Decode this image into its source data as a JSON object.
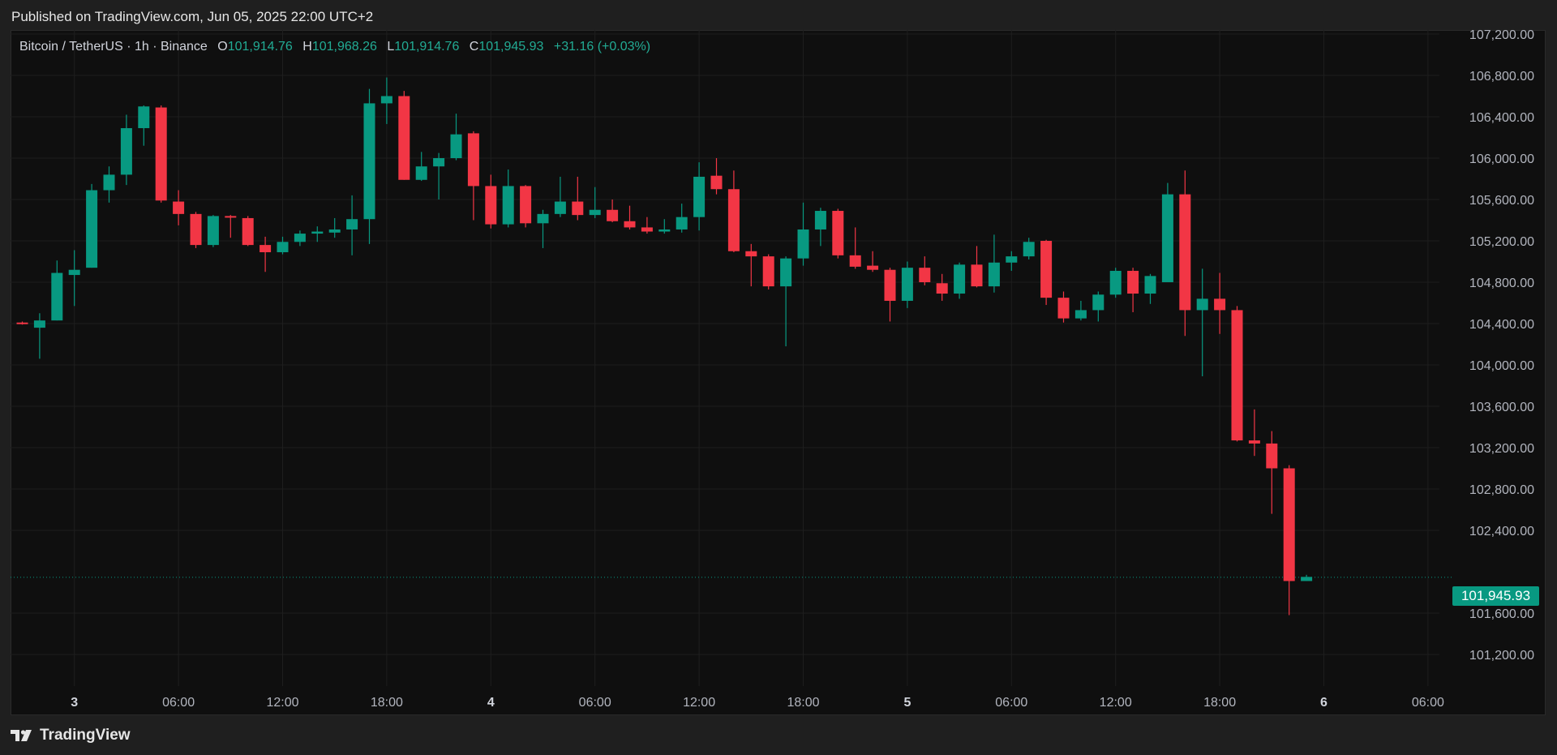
{
  "header": {
    "published": "Published on TradingView.com, Jun 05, 2025 22:00 UTC+2"
  },
  "legend": {
    "symbol": "Bitcoin / TetherUS · 1h · Binance",
    "open_label": "O",
    "open": "101,914.76",
    "high_label": "H",
    "high": "101,968.26",
    "low_label": "L",
    "low": "101,914.76",
    "close_label": "C",
    "close": "101,945.93",
    "change": "+31.16 (+0.03%)"
  },
  "last_price_label": "101,945.93",
  "footer": {
    "brand": "TradingView"
  },
  "colors": {
    "up": "#089981",
    "down": "#f23645",
    "grid": "#1e1e1e",
    "axis_text": "#b2b5be",
    "last_price_line": "#089981"
  },
  "chart_data": {
    "type": "candlestick",
    "symbol": "Bitcoin / TetherUS",
    "interval": "1h",
    "exchange": "Binance",
    "ylim": [
      101000,
      107400
    ],
    "y_ticks": [
      107200,
      106800,
      106400,
      106000,
      105600,
      105200,
      104800,
      104400,
      104000,
      103600,
      103200,
      102800,
      102400,
      101600,
      101200
    ],
    "y_tick_labels": [
      "107,200.00",
      "106,800.00",
      "106,400.00",
      "106,000.00",
      "105,600.00",
      "105,200.00",
      "104,800.00",
      "104,400.00",
      "104,000.00",
      "103,600.00",
      "103,200.00",
      "102,800.00",
      "102,400.00",
      "101,600.00",
      "101,200.00"
    ],
    "x_ticks": [
      {
        "hour_index": 3,
        "label": "3",
        "bold": true
      },
      {
        "hour_index": 9,
        "label": "06:00",
        "bold": false
      },
      {
        "hour_index": 15,
        "label": "12:00",
        "bold": false
      },
      {
        "hour_index": 21,
        "label": "18:00",
        "bold": false
      },
      {
        "hour_index": 27,
        "label": "4",
        "bold": true
      },
      {
        "hour_index": 33,
        "label": "06:00",
        "bold": false
      },
      {
        "hour_index": 39,
        "label": "12:00",
        "bold": false
      },
      {
        "hour_index": 45,
        "label": "18:00",
        "bold": false
      },
      {
        "hour_index": 51,
        "label": "5",
        "bold": true
      },
      {
        "hour_index": 57,
        "label": "06:00",
        "bold": false
      },
      {
        "hour_index": 63,
        "label": "12:00",
        "bold": false
      },
      {
        "hour_index": 69,
        "label": "18:00",
        "bold": false
      },
      {
        "hour_index": 75,
        "label": "6",
        "bold": true
      },
      {
        "hour_index": 81,
        "label": "06:00",
        "bold": false
      }
    ],
    "last_price": 101945.93,
    "candles": [
      {
        "o": 104410,
        "h": 104420,
        "l": 104390,
        "c": 104400
      },
      {
        "o": 104360,
        "h": 104500,
        "l": 104060,
        "c": 104430
      },
      {
        "o": 104430,
        "h": 105010,
        "l": 104430,
        "c": 104890
      },
      {
        "o": 104870,
        "h": 105110,
        "l": 104570,
        "c": 104920
      },
      {
        "o": 104940,
        "h": 105750,
        "l": 104940,
        "c": 105690
      },
      {
        "o": 105690,
        "h": 105920,
        "l": 105570,
        "c": 105840
      },
      {
        "o": 105840,
        "h": 106420,
        "l": 105740,
        "c": 106290
      },
      {
        "o": 106290,
        "h": 106510,
        "l": 106120,
        "c": 106500
      },
      {
        "o": 106490,
        "h": 106510,
        "l": 105570,
        "c": 105590
      },
      {
        "o": 105580,
        "h": 105690,
        "l": 105350,
        "c": 105460
      },
      {
        "o": 105460,
        "h": 105480,
        "l": 105130,
        "c": 105160
      },
      {
        "o": 105160,
        "h": 105450,
        "l": 105140,
        "c": 105440
      },
      {
        "o": 105440,
        "h": 105450,
        "l": 105230,
        "c": 105430
      },
      {
        "o": 105420,
        "h": 105440,
        "l": 105150,
        "c": 105160
      },
      {
        "o": 105160,
        "h": 105240,
        "l": 104900,
        "c": 105090
      },
      {
        "o": 105090,
        "h": 105240,
        "l": 105070,
        "c": 105190
      },
      {
        "o": 105190,
        "h": 105300,
        "l": 105150,
        "c": 105270
      },
      {
        "o": 105270,
        "h": 105340,
        "l": 105190,
        "c": 105290
      },
      {
        "o": 105280,
        "h": 105420,
        "l": 105230,
        "c": 105310
      },
      {
        "o": 105310,
        "h": 105640,
        "l": 105060,
        "c": 105410
      },
      {
        "o": 105410,
        "h": 106670,
        "l": 105170,
        "c": 106530
      },
      {
        "o": 106530,
        "h": 106780,
        "l": 106330,
        "c": 106600
      },
      {
        "o": 106600,
        "h": 106650,
        "l": 105790,
        "c": 105790
      },
      {
        "o": 105790,
        "h": 106060,
        "l": 105780,
        "c": 105920
      },
      {
        "o": 105920,
        "h": 106050,
        "l": 105600,
        "c": 106000
      },
      {
        "o": 106000,
        "h": 106430,
        "l": 105980,
        "c": 106230
      },
      {
        "o": 106240,
        "h": 106260,
        "l": 105400,
        "c": 105730
      },
      {
        "o": 105730,
        "h": 105840,
        "l": 105320,
        "c": 105360
      },
      {
        "o": 105360,
        "h": 105890,
        "l": 105330,
        "c": 105730
      },
      {
        "o": 105730,
        "h": 105740,
        "l": 105330,
        "c": 105370
      },
      {
        "o": 105370,
        "h": 105500,
        "l": 105130,
        "c": 105460
      },
      {
        "o": 105460,
        "h": 105820,
        "l": 105430,
        "c": 105580
      },
      {
        "o": 105580,
        "h": 105820,
        "l": 105400,
        "c": 105450
      },
      {
        "o": 105450,
        "h": 105720,
        "l": 105420,
        "c": 105500
      },
      {
        "o": 105500,
        "h": 105600,
        "l": 105380,
        "c": 105390
      },
      {
        "o": 105390,
        "h": 105540,
        "l": 105310,
        "c": 105330
      },
      {
        "o": 105330,
        "h": 105430,
        "l": 105270,
        "c": 105290
      },
      {
        "o": 105290,
        "h": 105410,
        "l": 105270,
        "c": 105310
      },
      {
        "o": 105310,
        "h": 105560,
        "l": 105280,
        "c": 105430
      },
      {
        "o": 105430,
        "h": 105960,
        "l": 105300,
        "c": 105820
      },
      {
        "o": 105830,
        "h": 106000,
        "l": 105650,
        "c": 105700
      },
      {
        "o": 105700,
        "h": 105880,
        "l": 105090,
        "c": 105100
      },
      {
        "o": 105100,
        "h": 105170,
        "l": 104760,
        "c": 105050
      },
      {
        "o": 105050,
        "h": 105070,
        "l": 104730,
        "c": 104760
      },
      {
        "o": 104760,
        "h": 105050,
        "l": 104180,
        "c": 105030
      },
      {
        "o": 105030,
        "h": 105570,
        "l": 104960,
        "c": 105310
      },
      {
        "o": 105310,
        "h": 105520,
        "l": 105150,
        "c": 105490
      },
      {
        "o": 105490,
        "h": 105510,
        "l": 105030,
        "c": 105060
      },
      {
        "o": 105060,
        "h": 105330,
        "l": 104930,
        "c": 104950
      },
      {
        "o": 104960,
        "h": 105100,
        "l": 104900,
        "c": 104920
      },
      {
        "o": 104920,
        "h": 104940,
        "l": 104420,
        "c": 104620
      },
      {
        "o": 104620,
        "h": 105000,
        "l": 104550,
        "c": 104940
      },
      {
        "o": 104940,
        "h": 105050,
        "l": 104770,
        "c": 104800
      },
      {
        "o": 104790,
        "h": 104880,
        "l": 104620,
        "c": 104690
      },
      {
        "o": 104690,
        "h": 104990,
        "l": 104640,
        "c": 104970
      },
      {
        "o": 104970,
        "h": 105150,
        "l": 104750,
        "c": 104760
      },
      {
        "o": 104760,
        "h": 105260,
        "l": 104700,
        "c": 104990
      },
      {
        "o": 104990,
        "h": 105100,
        "l": 104910,
        "c": 105050
      },
      {
        "o": 105050,
        "h": 105230,
        "l": 105020,
        "c": 105190
      },
      {
        "o": 105200,
        "h": 105210,
        "l": 104580,
        "c": 104650
      },
      {
        "o": 104650,
        "h": 104710,
        "l": 104410,
        "c": 104450
      },
      {
        "o": 104450,
        "h": 104620,
        "l": 104430,
        "c": 104530
      },
      {
        "o": 104530,
        "h": 104710,
        "l": 104420,
        "c": 104680
      },
      {
        "o": 104680,
        "h": 104940,
        "l": 104650,
        "c": 104910
      },
      {
        "o": 104910,
        "h": 104940,
        "l": 104510,
        "c": 104690
      },
      {
        "o": 104690,
        "h": 104880,
        "l": 104590,
        "c": 104860
      },
      {
        "o": 104800,
        "h": 105760,
        "l": 104800,
        "c": 105650
      },
      {
        "o": 105650,
        "h": 105880,
        "l": 104280,
        "c": 104530
      },
      {
        "o": 104530,
        "h": 104930,
        "l": 103890,
        "c": 104640
      },
      {
        "o": 104640,
        "h": 104890,
        "l": 104300,
        "c": 104530
      },
      {
        "o": 104530,
        "h": 104570,
        "l": 103260,
        "c": 103270
      },
      {
        "o": 103270,
        "h": 103570,
        "l": 103120,
        "c": 103240
      },
      {
        "o": 103240,
        "h": 103360,
        "l": 102560,
        "c": 103000
      },
      {
        "o": 103000,
        "h": 103030,
        "l": 101580,
        "c": 101910
      },
      {
        "o": 101910,
        "h": 101970,
        "l": 101910,
        "c": 101950
      }
    ]
  }
}
